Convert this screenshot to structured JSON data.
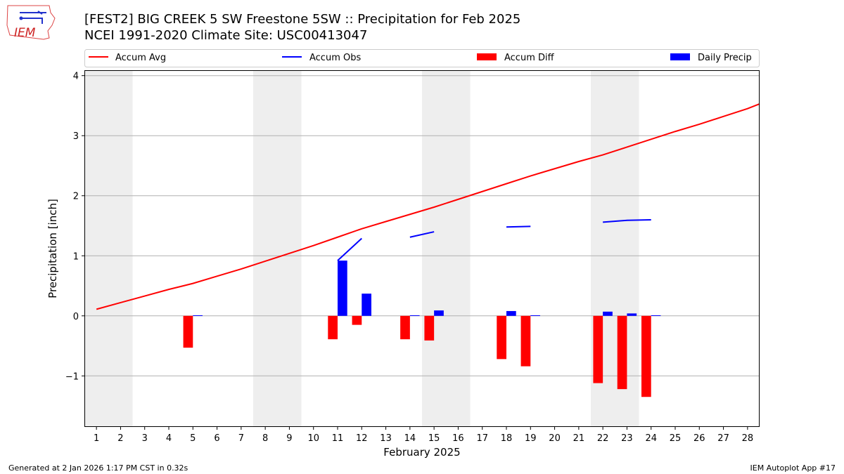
{
  "header": {
    "logo_text": "IEM",
    "title_line1": "[FEST2] BIG CREEK 5 SW Freestone 5SW :: Precipitation for Feb 2025",
    "title_line2": "NCEI 1991-2020 Climate Site: USC00413047"
  },
  "footer": {
    "left": "Generated at 2 Jan 2026 1:17 PM CST in 0.32s",
    "right": "IEM Autoplot App #17"
  },
  "colors": {
    "avg": "#ff0000",
    "obs": "#0000ff",
    "diff": "#ff0000",
    "daily": "#0000ff",
    "weekend": "#eeeeee",
    "grid": "#b0b0b0"
  },
  "chart_data": {
    "type": "bar",
    "title": "[FEST2] BIG CREEK 5 SW Freestone 5SW :: Precipitation for Feb 2025",
    "xlabel": "February 2025",
    "ylabel": "Precipitation [inch]",
    "xlim": [
      0.5,
      28.5
    ],
    "ylim": [
      -1.85,
      4.09
    ],
    "yticks": [
      -1,
      0,
      1,
      2,
      3,
      4
    ],
    "ytick_labels": [
      "−1",
      "0",
      "1",
      "2",
      "3",
      "4"
    ],
    "grid": "horizontal",
    "legend_placement": "top",
    "legend": [
      "Accum Avg",
      "Accum Obs",
      "Accum Diff",
      "Daily Precip"
    ],
    "weekend_ranges": [
      [
        0.5,
        2.5
      ],
      [
        7.5,
        9.5
      ],
      [
        14.5,
        16.5
      ],
      [
        21.5,
        23.5
      ]
    ],
    "days": [
      1,
      2,
      3,
      4,
      5,
      6,
      7,
      8,
      9,
      10,
      11,
      12,
      13,
      14,
      15,
      16,
      17,
      18,
      19,
      20,
      21,
      22,
      23,
      24,
      25,
      26,
      27,
      28
    ],
    "series": [
      {
        "name": "Accum Avg",
        "kind": "line",
        "values": [
          0.11,
          0.22,
          0.33,
          0.44,
          0.54,
          0.66,
          0.78,
          0.91,
          1.04,
          1.17,
          1.31,
          1.45,
          1.57,
          1.69,
          1.81,
          1.94,
          2.07,
          2.2,
          2.33,
          2.45,
          2.57,
          2.68,
          2.81,
          2.94,
          3.07,
          3.19,
          3.32,
          3.45
        ],
        "end_value_28_5": 3.53
      },
      {
        "name": "Accum Obs",
        "kind": "line",
        "values": [
          null,
          null,
          null,
          null,
          null,
          null,
          null,
          null,
          null,
          null,
          0.92,
          1.29,
          null,
          1.31,
          1.4,
          null,
          null,
          1.48,
          1.49,
          null,
          null,
          1.56,
          1.59,
          1.6,
          null,
          null,
          null,
          null
        ]
      },
      {
        "name": "Accum Diff",
        "kind": "bar",
        "values": [
          null,
          null,
          null,
          null,
          -0.53,
          null,
          null,
          null,
          null,
          null,
          -0.39,
          -0.15,
          null,
          -0.39,
          -0.41,
          null,
          null,
          -0.72,
          -0.84,
          null,
          null,
          -1.12,
          -1.22,
          -1.35,
          null,
          null,
          null,
          null
        ]
      },
      {
        "name": "Daily Precip",
        "kind": "bar",
        "values": [
          null,
          null,
          null,
          null,
          0.01,
          null,
          null,
          null,
          null,
          null,
          0.92,
          0.37,
          null,
          0.01,
          0.09,
          null,
          null,
          0.08,
          0.01,
          null,
          null,
          0.07,
          0.04,
          0.01,
          null,
          null,
          null,
          null
        ]
      }
    ]
  }
}
